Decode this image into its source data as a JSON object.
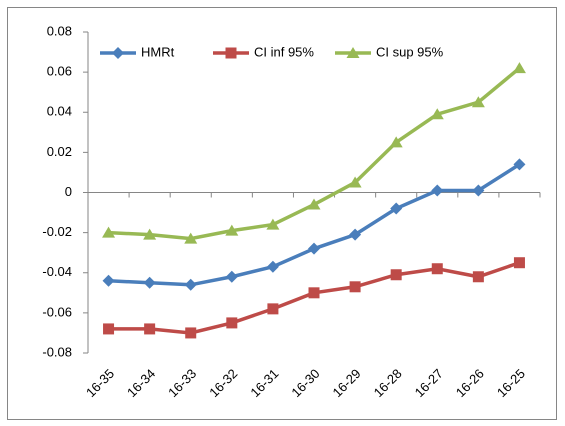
{
  "chart_data": {
    "type": "line",
    "categories": [
      "16-35",
      "16-34",
      "16-33",
      "16-32",
      "16-31",
      "16-30",
      "16-29",
      "16-28",
      "16-27",
      "16-26",
      "16-25"
    ],
    "series": [
      {
        "name": "HMRt",
        "color": "#4a7ebb",
        "marker": "diamond",
        "values": [
          -0.044,
          -0.045,
          -0.046,
          -0.042,
          -0.037,
          -0.028,
          -0.021,
          -0.008,
          0.001,
          0.001,
          0.014
        ]
      },
      {
        "name": "CI inf 95%",
        "color": "#be4b48",
        "marker": "square",
        "values": [
          -0.068,
          -0.068,
          -0.07,
          -0.065,
          -0.058,
          -0.05,
          -0.047,
          -0.041,
          -0.038,
          -0.042,
          -0.035
        ]
      },
      {
        "name": "CI sup 95%",
        "color": "#98b954",
        "marker": "triangle",
        "values": [
          -0.02,
          -0.021,
          -0.023,
          -0.019,
          -0.016,
          -0.006,
          0.005,
          0.025,
          0.039,
          0.045,
          0.062
        ]
      }
    ],
    "ylim": [
      -0.08,
      0.08
    ],
    "yticks": [
      -0.08,
      -0.06,
      -0.04,
      -0.02,
      0,
      0.02,
      0.04,
      0.06,
      0.08
    ],
    "grid": false,
    "legend": "top-left"
  }
}
